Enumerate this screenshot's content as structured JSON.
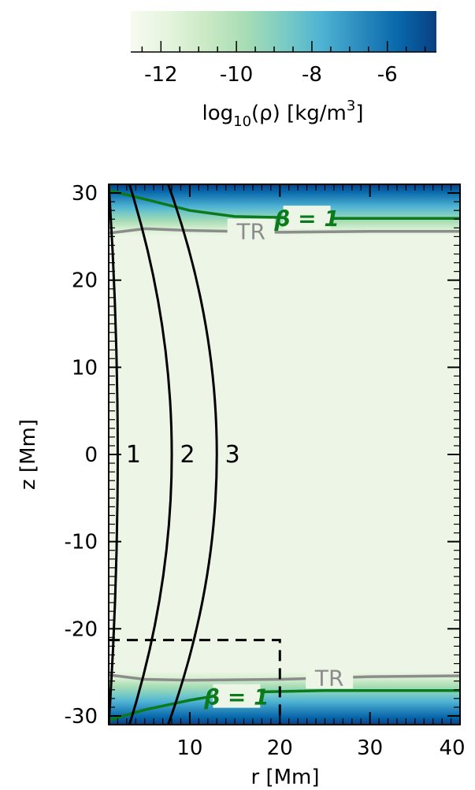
{
  "chart_data": {
    "type": "heatmap",
    "xlabel": "r [Mm]",
    "ylabel": "z [Mm]",
    "xlim": [
      1,
      40
    ],
    "ylim": [
      -31,
      31
    ],
    "xticks": [
      10,
      20,
      30,
      40
    ],
    "yticks": [
      -30,
      -20,
      -10,
      0,
      10,
      20,
      30
    ],
    "colorbar": {
      "label_main": "log",
      "label_sub": "10",
      "label_rest": "(ρ) [kg/m",
      "label_sup": "3",
      "label_end": "]",
      "range": [
        -12.8,
        -4.7
      ],
      "ticks": [
        -12,
        -10,
        -8,
        -6
      ],
      "colors": [
        "#f7fbef",
        "#e4f4dd",
        "#c9e9c3",
        "#a8ddb5",
        "#7bccc4",
        "#4eb3d3",
        "#2b8cbe",
        "#0868ac",
        "#084081"
      ]
    },
    "field_lines": [
      {
        "label": "1",
        "r_mid": 2.0,
        "r_end": 1.0
      },
      {
        "label": "2",
        "r_mid": 8.0,
        "r_end": 3.3
      },
      {
        "label": "3",
        "r_mid": 13.0,
        "r_end": 7.6
      }
    ],
    "contours": [
      {
        "label": "TR",
        "color": "#8c8c8c",
        "top": [
          [
            1,
            25.4
          ],
          [
            5,
            25.9
          ],
          [
            10,
            25.7
          ],
          [
            20,
            25.5
          ],
          [
            30,
            25.6
          ],
          [
            40,
            25.6
          ]
        ],
        "bottom": [
          [
            1,
            -25.3
          ],
          [
            5,
            -25.8
          ],
          [
            10,
            -25.9
          ],
          [
            20,
            -25.8
          ],
          [
            30,
            -25.5
          ],
          [
            40,
            -25.4
          ]
        ]
      },
      {
        "label": "β = 1",
        "color": "#0a7a1a",
        "top": [
          [
            1,
            30.3
          ],
          [
            5,
            29.3
          ],
          [
            10,
            28.0
          ],
          [
            15,
            27.3
          ],
          [
            25,
            27.1
          ],
          [
            40,
            27.1
          ]
        ],
        "bottom": [
          [
            1,
            -30.5
          ],
          [
            5,
            -29.3
          ],
          [
            10,
            -28.2
          ],
          [
            15,
            -27.3
          ],
          [
            25,
            -27.1
          ],
          [
            40,
            -27.1
          ]
        ]
      }
    ],
    "dashed_box": {
      "r_max": 20,
      "z_max": -21.3
    },
    "legend": "none",
    "grid": false
  }
}
